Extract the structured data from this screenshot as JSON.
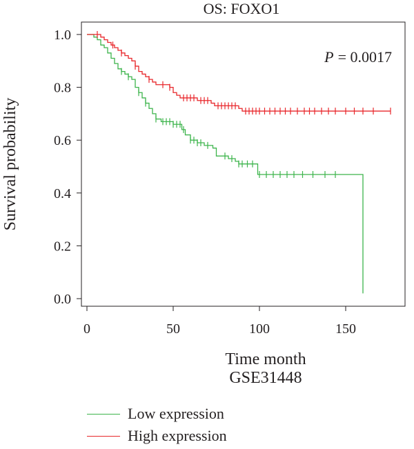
{
  "chart_data": {
    "type": "line",
    "title": "OS: FOXO1",
    "xlabel": "Time month",
    "dataset": "GSE31448",
    "ylabel": "Survival probability",
    "annotation": {
      "p_label": "P",
      "p_value": "= 0.0017"
    },
    "xlim": [
      0,
      180
    ],
    "ylim": [
      0,
      1.0
    ],
    "xticks": [
      0,
      50,
      100,
      150
    ],
    "yticks": [
      0.0,
      0.2,
      0.4,
      0.6,
      0.8,
      1.0
    ],
    "ytick_labels": [
      "0.0",
      "0.2",
      "0.4",
      "0.6",
      "0.8",
      "1.0"
    ],
    "grid": false,
    "legend_position": "bottom-left",
    "series": [
      {
        "name": "Low expression",
        "color": "#3cb44b",
        "steps": [
          [
            0,
            1.0
          ],
          [
            4,
            0.99
          ],
          [
            6,
            0.98
          ],
          [
            8,
            0.96
          ],
          [
            10,
            0.95
          ],
          [
            12,
            0.93
          ],
          [
            14,
            0.91
          ],
          [
            16,
            0.89
          ],
          [
            18,
            0.87
          ],
          [
            20,
            0.86
          ],
          [
            22,
            0.85
          ],
          [
            24,
            0.84
          ],
          [
            26,
            0.83
          ],
          [
            28,
            0.8
          ],
          [
            30,
            0.78
          ],
          [
            32,
            0.76
          ],
          [
            34,
            0.74
          ],
          [
            36,
            0.72
          ],
          [
            38,
            0.7
          ],
          [
            40,
            0.68
          ],
          [
            43,
            0.67
          ],
          [
            50,
            0.66
          ],
          [
            55,
            0.64
          ],
          [
            57,
            0.62
          ],
          [
            60,
            0.6
          ],
          [
            64,
            0.59
          ],
          [
            68,
            0.58
          ],
          [
            73,
            0.57
          ],
          [
            75,
            0.54
          ],
          [
            82,
            0.53
          ],
          [
            86,
            0.52
          ],
          [
            88,
            0.51
          ],
          [
            91,
            0.51
          ],
          [
            99,
            0.47
          ],
          [
            160,
            0.02
          ]
        ],
        "end": 160,
        "censor": [
          [
            20,
            0.86
          ],
          [
            24,
            0.84
          ],
          [
            30,
            0.78
          ],
          [
            34,
            0.74
          ],
          [
            40,
            0.68
          ],
          [
            44,
            0.67
          ],
          [
            46,
            0.67
          ],
          [
            48,
            0.67
          ],
          [
            50,
            0.66
          ],
          [
            52,
            0.66
          ],
          [
            54,
            0.66
          ],
          [
            56,
            0.64
          ],
          [
            60,
            0.6
          ],
          [
            62,
            0.6
          ],
          [
            64,
            0.59
          ],
          [
            66,
            0.59
          ],
          [
            70,
            0.58
          ],
          [
            80,
            0.54
          ],
          [
            84,
            0.53
          ],
          [
            88,
            0.51
          ],
          [
            90,
            0.51
          ],
          [
            93,
            0.51
          ],
          [
            96,
            0.51
          ],
          [
            100,
            0.47
          ],
          [
            104,
            0.47
          ],
          [
            108,
            0.47
          ],
          [
            112,
            0.47
          ],
          [
            116,
            0.47
          ],
          [
            120,
            0.47
          ],
          [
            125,
            0.47
          ],
          [
            131,
            0.47
          ],
          [
            138,
            0.47
          ],
          [
            144,
            0.47
          ]
        ]
      },
      {
        "name": "High expression",
        "color": "#e8262a",
        "steps": [
          [
            0,
            1.0
          ],
          [
            5,
            1.0
          ],
          [
            8,
            0.99
          ],
          [
            10,
            0.98
          ],
          [
            12,
            0.97
          ],
          [
            14,
            0.96
          ],
          [
            16,
            0.95
          ],
          [
            18,
            0.94
          ],
          [
            20,
            0.93
          ],
          [
            22,
            0.92
          ],
          [
            24,
            0.91
          ],
          [
            26,
            0.9
          ],
          [
            28,
            0.88
          ],
          [
            30,
            0.86
          ],
          [
            32,
            0.85
          ],
          [
            34,
            0.84
          ],
          [
            36,
            0.83
          ],
          [
            38,
            0.82
          ],
          [
            40,
            0.81
          ],
          [
            48,
            0.8
          ],
          [
            50,
            0.78
          ],
          [
            52,
            0.77
          ],
          [
            54,
            0.76
          ],
          [
            64,
            0.75
          ],
          [
            72,
            0.74
          ],
          [
            74,
            0.73
          ],
          [
            88,
            0.72
          ],
          [
            90,
            0.71
          ]
        ],
        "end": 176,
        "censor": [
          [
            6,
            1.0
          ],
          [
            15,
            0.96
          ],
          [
            20,
            0.93
          ],
          [
            28,
            0.88
          ],
          [
            36,
            0.83
          ],
          [
            44,
            0.81
          ],
          [
            48,
            0.8
          ],
          [
            56,
            0.76
          ],
          [
            58,
            0.76
          ],
          [
            60,
            0.76
          ],
          [
            62,
            0.76
          ],
          [
            66,
            0.75
          ],
          [
            68,
            0.75
          ],
          [
            70,
            0.75
          ],
          [
            76,
            0.73
          ],
          [
            78,
            0.73
          ],
          [
            80,
            0.73
          ],
          [
            82,
            0.73
          ],
          [
            84,
            0.73
          ],
          [
            86,
            0.73
          ],
          [
            92,
            0.71
          ],
          [
            94,
            0.71
          ],
          [
            96,
            0.71
          ],
          [
            98,
            0.71
          ],
          [
            100,
            0.71
          ],
          [
            103,
            0.71
          ],
          [
            106,
            0.71
          ],
          [
            109,
            0.71
          ],
          [
            112,
            0.71
          ],
          [
            115,
            0.71
          ],
          [
            118,
            0.71
          ],
          [
            122,
            0.71
          ],
          [
            126,
            0.71
          ],
          [
            129,
            0.71
          ],
          [
            132,
            0.71
          ],
          [
            136,
            0.71
          ],
          [
            140,
            0.71
          ],
          [
            144,
            0.71
          ],
          [
            150,
            0.71
          ],
          [
            155,
            0.71
          ],
          [
            160,
            0.71
          ],
          [
            166,
            0.71
          ],
          [
            176,
            0.71
          ]
        ]
      }
    ]
  }
}
